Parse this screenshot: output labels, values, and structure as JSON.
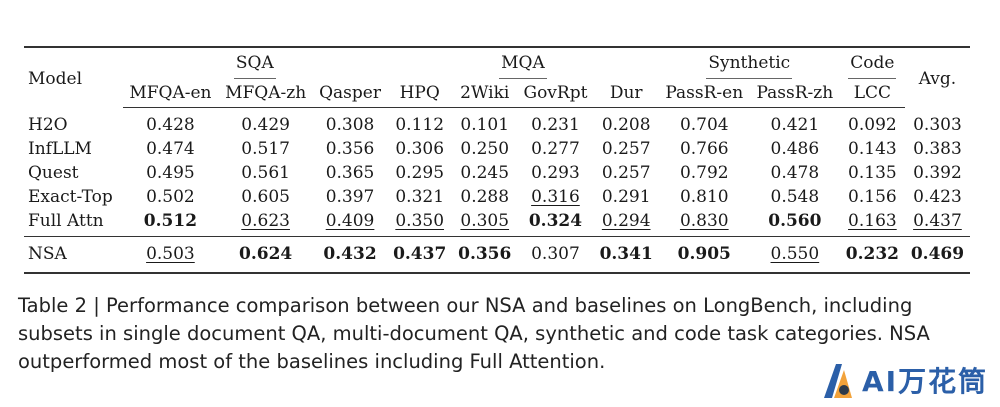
{
  "table": {
    "model_header": "Model",
    "groups": [
      {
        "label": "SQA",
        "span": 3
      },
      {
        "label": "MQA",
        "span": 4
      },
      {
        "label": "Synthetic",
        "span": 2
      },
      {
        "label": "Code",
        "span": 1
      }
    ],
    "avg_header": "Avg.",
    "columns": [
      "MFQA-en",
      "MFQA-zh",
      "Qasper",
      "HPQ",
      "2Wiki",
      "GovRpt",
      "Dur",
      "PassR-en",
      "PassR-zh",
      "LCC"
    ],
    "rows": [
      {
        "model": "H2O",
        "cells": [
          {
            "v": "0.428"
          },
          {
            "v": "0.429"
          },
          {
            "v": "0.308"
          },
          {
            "v": "0.112"
          },
          {
            "v": "0.101"
          },
          {
            "v": "0.231"
          },
          {
            "v": "0.208"
          },
          {
            "v": "0.704"
          },
          {
            "v": "0.421"
          },
          {
            "v": "0.092"
          },
          {
            "v": "0.303"
          }
        ]
      },
      {
        "model": "InfLLM",
        "cells": [
          {
            "v": "0.474"
          },
          {
            "v": "0.517"
          },
          {
            "v": "0.356"
          },
          {
            "v": "0.306"
          },
          {
            "v": "0.250"
          },
          {
            "v": "0.277"
          },
          {
            "v": "0.257"
          },
          {
            "v": "0.766"
          },
          {
            "v": "0.486"
          },
          {
            "v": "0.143"
          },
          {
            "v": "0.383"
          }
        ]
      },
      {
        "model": "Quest",
        "cells": [
          {
            "v": "0.495"
          },
          {
            "v": "0.561"
          },
          {
            "v": "0.365"
          },
          {
            "v": "0.295"
          },
          {
            "v": "0.245"
          },
          {
            "v": "0.293"
          },
          {
            "v": "0.257"
          },
          {
            "v": "0.792"
          },
          {
            "v": "0.478"
          },
          {
            "v": "0.135"
          },
          {
            "v": "0.392"
          }
        ]
      },
      {
        "model": "Exact-Top",
        "cells": [
          {
            "v": "0.502"
          },
          {
            "v": "0.605"
          },
          {
            "v": "0.397"
          },
          {
            "v": "0.321"
          },
          {
            "v": "0.288"
          },
          {
            "v": "0.316",
            "s": "underline"
          },
          {
            "v": "0.291"
          },
          {
            "v": "0.810"
          },
          {
            "v": "0.548"
          },
          {
            "v": "0.156"
          },
          {
            "v": "0.423"
          }
        ]
      },
      {
        "model": "Full Attn",
        "cells": [
          {
            "v": "0.512",
            "s": "bold"
          },
          {
            "v": "0.623",
            "s": "underline"
          },
          {
            "v": "0.409",
            "s": "underline"
          },
          {
            "v": "0.350",
            "s": "underline"
          },
          {
            "v": "0.305",
            "s": "underline"
          },
          {
            "v": "0.324",
            "s": "bold"
          },
          {
            "v": "0.294",
            "s": "underline"
          },
          {
            "v": "0.830",
            "s": "underline"
          },
          {
            "v": "0.560",
            "s": "bold"
          },
          {
            "v": "0.163",
            "s": "underline"
          },
          {
            "v": "0.437",
            "s": "underline"
          }
        ]
      },
      {
        "model": "NSA",
        "cells": [
          {
            "v": "0.503",
            "s": "underline"
          },
          {
            "v": "0.624",
            "s": "bold"
          },
          {
            "v": "0.432",
            "s": "bold"
          },
          {
            "v": "0.437",
            "s": "bold"
          },
          {
            "v": "0.356",
            "s": "bold"
          },
          {
            "v": "0.307"
          },
          {
            "v": "0.341",
            "s": "bold"
          },
          {
            "v": "0.905",
            "s": "bold"
          },
          {
            "v": "0.550",
            "s": "underline"
          },
          {
            "v": "0.232",
            "s": "bold"
          },
          {
            "v": "0.469",
            "s": "bold"
          }
        ]
      }
    ]
  },
  "caption": {
    "lines": [
      "Table 2 | Performance comparison between our NSA and baselines on LongBench, including",
      "subsets in single document QA, multi-document QA, synthetic and code task categories. NSA",
      "outperformed most of the baselines including Full Attention."
    ]
  },
  "watermark": {
    "text": "AI万花筒",
    "colors": {
      "blue": "#2b5fa8",
      "orange": "#f2a23a",
      "dark": "#2d3a4a"
    }
  }
}
